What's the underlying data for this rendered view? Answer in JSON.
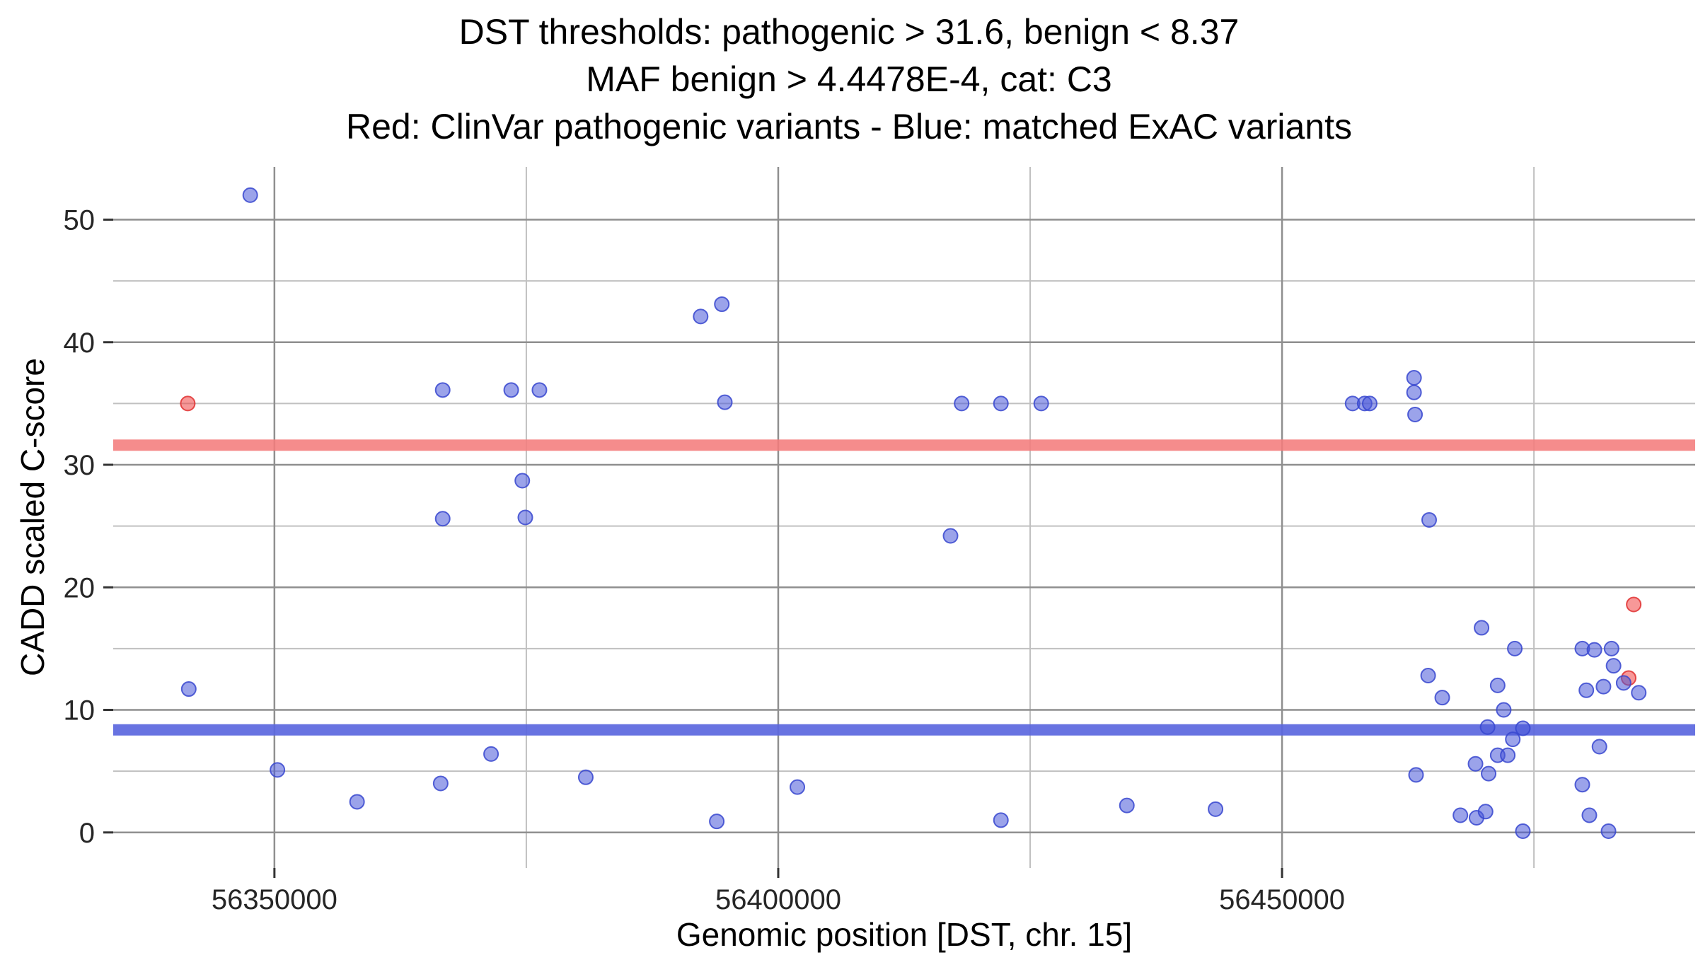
{
  "title": {
    "line1": "DST thresholds: pathogenic > 31.6, benign < 8.37",
    "line2": "MAF benign > 4.4478E-4, cat: C3",
    "line3": "Red: ClinVar pathogenic variants - Blue: matched ExAC variants"
  },
  "chart_data": {
    "type": "scatter",
    "title": "DST thresholds: pathogenic > 31.6, benign < 8.37 / MAF benign > 4.4478E-4, cat: C3 / Red: ClinVar pathogenic variants - Blue: matched ExAC variants",
    "xlabel": "Genomic position [DST, chr. 15]",
    "ylabel": "CADD scaled C-score",
    "xlim": [
      56334000,
      56491000
    ],
    "ylim": [
      -2.9,
      54.3
    ],
    "x_major_ticks": [
      56350000,
      56400000,
      56450000
    ],
    "x_minor_gridlines": [
      56375000,
      56425000,
      56475000
    ],
    "y_major_ticks": [
      0,
      10,
      20,
      30,
      40,
      50
    ],
    "y_minor_gridlines": [
      5,
      15,
      25,
      35,
      45
    ],
    "grid": true,
    "legend_position": "none",
    "thresholds": {
      "pathogenic": {
        "value": 31.6,
        "color": "#f47c7c",
        "label": "pathogenic > 31.6"
      },
      "benign": {
        "value": 8.37,
        "color": "#5b67de",
        "label": "benign < 8.37"
      }
    },
    "style": {
      "background": "#ffffff",
      "grid_major": "#8f8f8f",
      "grid_minor": "#c0c0c0",
      "tick_color": "#333333",
      "point_radius": 10,
      "band_height": 16
    },
    "series": [
      {
        "name": "ClinVar pathogenic variants",
        "color": "#f04343",
        "stroke": "#e03030",
        "points": [
          [
            56341400,
            35.0
          ],
          [
            56484900,
            18.6
          ],
          [
            56484400,
            12.6
          ]
        ]
      },
      {
        "name": "matched ExAC variants",
        "color": "#4958d8",
        "stroke": "#3747cf",
        "points": [
          [
            56347600,
            52.0
          ],
          [
            56341500,
            11.7
          ],
          [
            56350300,
            5.1
          ],
          [
            56358200,
            2.5
          ],
          [
            56366500,
            4.0
          ],
          [
            56366700,
            36.1
          ],
          [
            56366700,
            25.6
          ],
          [
            56371500,
            6.4
          ],
          [
            56373500,
            36.1
          ],
          [
            56374600,
            28.7
          ],
          [
            56374900,
            25.7
          ],
          [
            56376300,
            36.1
          ],
          [
            56380900,
            4.5
          ],
          [
            56392300,
            42.1
          ],
          [
            56394400,
            43.1
          ],
          [
            56394700,
            35.1
          ],
          [
            56393900,
            0.9
          ],
          [
            56401900,
            3.7
          ],
          [
            56417100,
            24.2
          ],
          [
            56418200,
            35.0
          ],
          [
            56422100,
            35.0
          ],
          [
            56422100,
            1.0
          ],
          [
            56426100,
            35.0
          ],
          [
            56434600,
            2.2
          ],
          [
            56443400,
            1.9
          ],
          [
            56457000,
            35.0
          ],
          [
            56458200,
            35.0
          ],
          [
            56458700,
            35.0
          ],
          [
            56463100,
            37.1
          ],
          [
            56463100,
            35.9
          ],
          [
            56463200,
            34.1
          ],
          [
            56463300,
            4.7
          ],
          [
            56464500,
            12.8
          ],
          [
            56464600,
            25.5
          ],
          [
            56465900,
            11.0
          ],
          [
            56467700,
            1.4
          ],
          [
            56469200,
            5.6
          ],
          [
            56469300,
            1.2
          ],
          [
            56469800,
            16.7
          ],
          [
            56470200,
            1.7
          ],
          [
            56470400,
            8.6
          ],
          [
            56470500,
            4.8
          ],
          [
            56471400,
            12.0
          ],
          [
            56471400,
            6.3
          ],
          [
            56472000,
            10.0
          ],
          [
            56472400,
            6.3
          ],
          [
            56472900,
            7.6
          ],
          [
            56473100,
            15.0
          ],
          [
            56473900,
            8.5
          ],
          [
            56473900,
            0.1
          ],
          [
            56479800,
            15.0
          ],
          [
            56479800,
            3.9
          ],
          [
            56480200,
            11.6
          ],
          [
            56480500,
            1.4
          ],
          [
            56481000,
            14.9
          ],
          [
            56481500,
            7.0
          ],
          [
            56481900,
            11.9
          ],
          [
            56482700,
            15.0
          ],
          [
            56482900,
            13.6
          ],
          [
            56482400,
            0.1
          ],
          [
            56483900,
            12.2
          ],
          [
            56485400,
            11.4
          ]
        ]
      }
    ]
  }
}
